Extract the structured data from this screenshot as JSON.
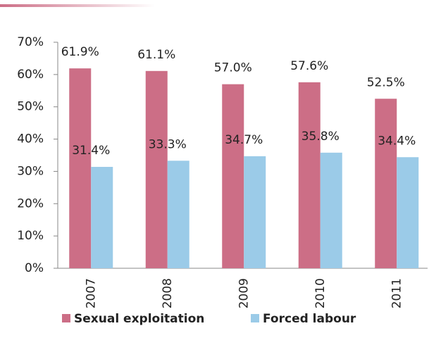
{
  "chart_data": {
    "type": "bar",
    "categories": [
      "2007",
      "2008",
      "2009",
      "2010",
      "2011"
    ],
    "series": [
      {
        "name": "Sexual exploitation",
        "color": "#cc6e86",
        "values": [
          61.9,
          61.1,
          57.0,
          57.6,
          52.5
        ],
        "value_labels": [
          "61.9%",
          "61.1%",
          "57.0%",
          "57.6%",
          "52.5%"
        ]
      },
      {
        "name": "Forced labour",
        "color": "#9bcbe8",
        "values": [
          31.4,
          33.3,
          34.7,
          35.8,
          34.4
        ],
        "value_labels": [
          "31.4%",
          "33.3%",
          "34.7%",
          "35.8%",
          "34.4%"
        ]
      }
    ],
    "ylim": [
      0,
      70
    ],
    "yticks": [
      {
        "value": 0,
        "label": "0%"
      },
      {
        "value": 10,
        "label": "10%"
      },
      {
        "value": 20,
        "label": "20%"
      },
      {
        "value": 30,
        "label": "30%"
      },
      {
        "value": 40,
        "label": "40%"
      },
      {
        "value": 50,
        "label": "50%"
      },
      {
        "value": 60,
        "label": "60%"
      },
      {
        "value": 70,
        "label": "70%"
      }
    ],
    "grid": false,
    "legend": "bottom"
  }
}
